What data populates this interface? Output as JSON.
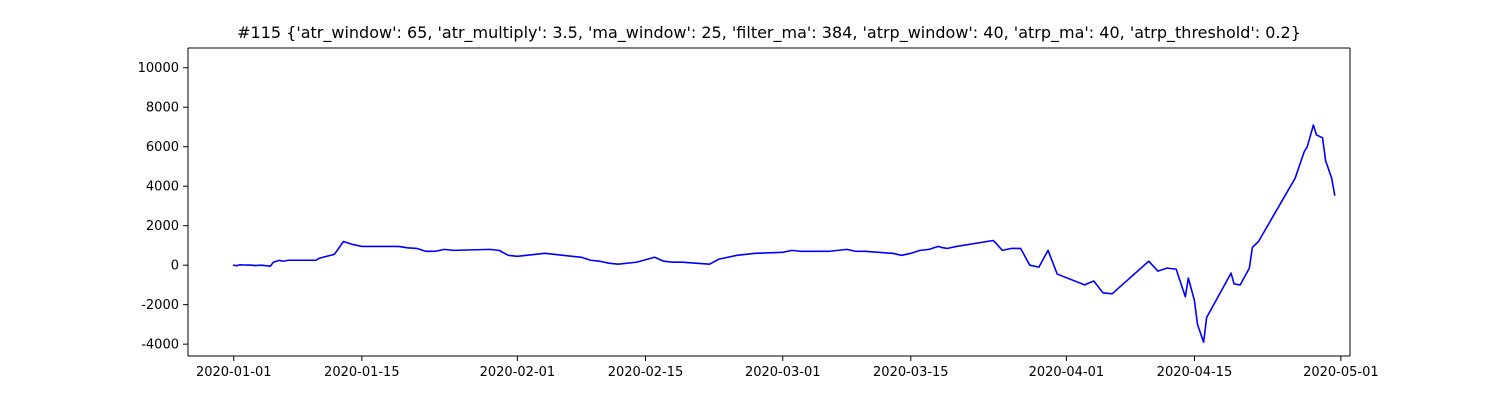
{
  "chart_data": {
    "type": "line",
    "title": "#115 {'atr_window': 65, 'atr_multiply': 3.5, 'ma_window': 25, 'filter_ma': 384, 'atrp_window': 40, 'atrp_ma': 40, 'atrp_threshold': 0.2}",
    "xlabel": "",
    "ylabel": "",
    "x_axis_type": "date",
    "xlim": [
      "2019-12-27",
      "2020-05-02"
    ],
    "ylim": [
      -4600,
      11000
    ],
    "xticks": [
      "2020-01-01",
      "2020-01-15",
      "2020-02-01",
      "2020-02-15",
      "2020-03-01",
      "2020-03-15",
      "2020-04-01",
      "2020-04-15",
      "2020-05-01"
    ],
    "yticks": [
      -4000,
      -2000,
      0,
      2000,
      4000,
      6000,
      8000,
      10000
    ],
    "grid": false,
    "series": [
      {
        "color": "#0000ff",
        "points": [
          [
            "2020-01-01",
            0
          ],
          [
            "2020-01-01",
            -30
          ],
          [
            "2020-01-01",
            20
          ],
          [
            "2020-01-02",
            10
          ],
          [
            "2020-01-03",
            0
          ],
          [
            "2020-01-03",
            -20
          ],
          [
            "2020-01-04",
            0
          ],
          [
            "2020-01-05",
            -50
          ],
          [
            "2020-01-05",
            150
          ],
          [
            "2020-01-06",
            250
          ],
          [
            "2020-01-06",
            200
          ],
          [
            "2020-01-07",
            250
          ],
          [
            "2020-01-09",
            250
          ],
          [
            "2020-01-10",
            250
          ],
          [
            "2020-01-10",
            350
          ],
          [
            "2020-01-12",
            550
          ],
          [
            "2020-01-13",
            1200
          ],
          [
            "2020-01-14",
            1050
          ],
          [
            "2020-01-15",
            950
          ],
          [
            "2020-01-17",
            950
          ],
          [
            "2020-01-19",
            950
          ],
          [
            "2020-01-20",
            880
          ],
          [
            "2020-01-21",
            850
          ],
          [
            "2020-01-22",
            700
          ],
          [
            "2020-01-23",
            700
          ],
          [
            "2020-01-24",
            800
          ],
          [
            "2020-01-25",
            750
          ],
          [
            "2020-01-29",
            800
          ],
          [
            "2020-01-30",
            750
          ],
          [
            "2020-01-31",
            500
          ],
          [
            "2020-02-01",
            450
          ],
          [
            "2020-02-03",
            550
          ],
          [
            "2020-02-04",
            600
          ],
          [
            "2020-02-05",
            550
          ],
          [
            "2020-02-08",
            400
          ],
          [
            "2020-02-09",
            250
          ],
          [
            "2020-02-10",
            200
          ],
          [
            "2020-02-11",
            100
          ],
          [
            "2020-02-12",
            50
          ],
          [
            "2020-02-14",
            150
          ],
          [
            "2020-02-16",
            400
          ],
          [
            "2020-02-17",
            200
          ],
          [
            "2020-02-18",
            150
          ],
          [
            "2020-02-19",
            150
          ],
          [
            "2020-02-22",
            50
          ],
          [
            "2020-02-23",
            300
          ],
          [
            "2020-02-24",
            400
          ],
          [
            "2020-02-25",
            500
          ],
          [
            "2020-02-27",
            600
          ],
          [
            "2020-03-01",
            650
          ],
          [
            "2020-03-02",
            750
          ],
          [
            "2020-03-03",
            700
          ],
          [
            "2020-03-06",
            700
          ],
          [
            "2020-03-08",
            800
          ],
          [
            "2020-03-09",
            700
          ],
          [
            "2020-03-10",
            700
          ],
          [
            "2020-03-13",
            600
          ],
          [
            "2020-03-14",
            500
          ],
          [
            "2020-03-15",
            600
          ],
          [
            "2020-03-16",
            750
          ],
          [
            "2020-03-17",
            800
          ],
          [
            "2020-03-18",
            950
          ],
          [
            "2020-03-18",
            900
          ],
          [
            "2020-03-19",
            850
          ],
          [
            "2020-03-20",
            950
          ],
          [
            "2020-03-24",
            1250
          ],
          [
            "2020-03-24",
            1100
          ],
          [
            "2020-03-25",
            750
          ],
          [
            "2020-03-26",
            850
          ],
          [
            "2020-03-27",
            850
          ],
          [
            "2020-03-28",
            0
          ],
          [
            "2020-03-29",
            -100
          ],
          [
            "2020-03-30",
            750
          ],
          [
            "2020-03-31",
            -450
          ],
          [
            "2020-04-03",
            -1000
          ],
          [
            "2020-04-04",
            -800
          ],
          [
            "2020-04-05",
            -1400
          ],
          [
            "2020-04-06",
            -1450
          ],
          [
            "2020-04-10",
            200
          ],
          [
            "2020-04-11",
            -300
          ],
          [
            "2020-04-12",
            -150
          ],
          [
            "2020-04-13",
            -200
          ],
          [
            "2020-04-14",
            -1600
          ],
          [
            "2020-04-14",
            -650
          ],
          [
            "2020-04-15",
            -1800
          ],
          [
            "2020-04-15",
            -3000
          ],
          [
            "2020-04-16",
            -3900
          ],
          [
            "2020-04-16",
            -2650
          ],
          [
            "2020-04-19",
            -400
          ],
          [
            "2020-04-19",
            -950
          ],
          [
            "2020-04-20",
            -1000
          ],
          [
            "2020-04-21",
            -150
          ],
          [
            "2020-04-21",
            900
          ],
          [
            "2020-04-22",
            1200
          ],
          [
            "2020-04-26",
            4400
          ],
          [
            "2020-04-27",
            5750
          ],
          [
            "2020-04-27",
            6000
          ],
          [
            "2020-04-28",
            7100
          ],
          [
            "2020-04-28",
            6600
          ],
          [
            "2020-04-29",
            6450
          ],
          [
            "2020-04-29",
            5300
          ],
          [
            "2020-04-30",
            4400
          ],
          [
            "2020-04-30",
            3550
          ]
        ]
      }
    ]
  }
}
